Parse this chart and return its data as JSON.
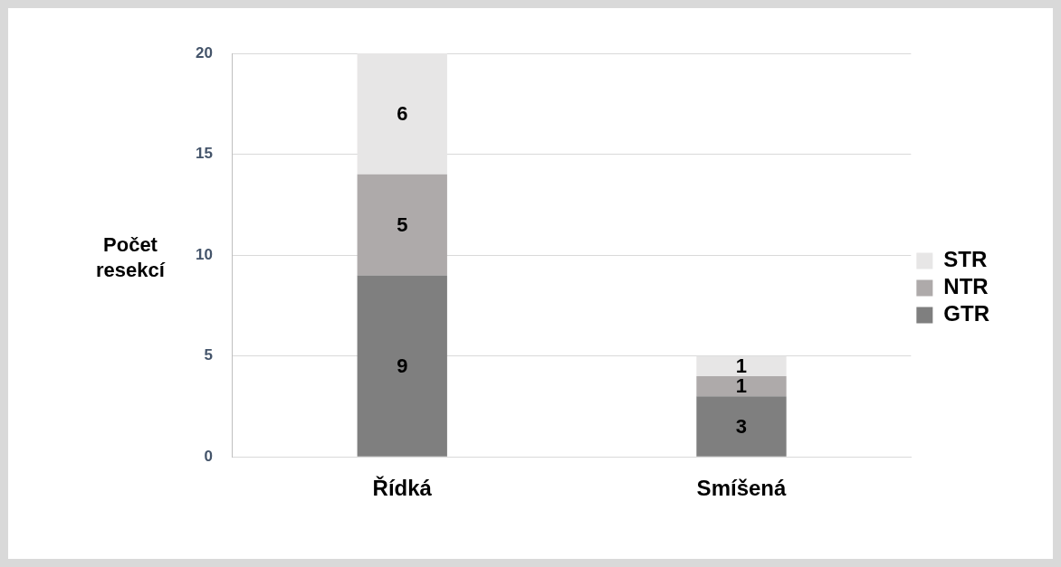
{
  "chart_data": {
    "type": "bar",
    "stacked": true,
    "ylabel": "Počet resekcí",
    "categories": [
      "Řídká",
      "Smíšená"
    ],
    "series": [
      {
        "name": "GTR",
        "color": "#7f7f7f",
        "values": [
          9,
          3
        ]
      },
      {
        "name": "NTR",
        "color": "#aeaaaa",
        "values": [
          5,
          1
        ]
      },
      {
        "name": "STR",
        "color": "#e7e6e6",
        "values": [
          6,
          1
        ]
      }
    ],
    "ylim": [
      0,
      20
    ],
    "yticks": [
      0,
      5,
      10,
      15,
      20
    ],
    "grid": "y",
    "legend": "right",
    "data_labels": true
  }
}
